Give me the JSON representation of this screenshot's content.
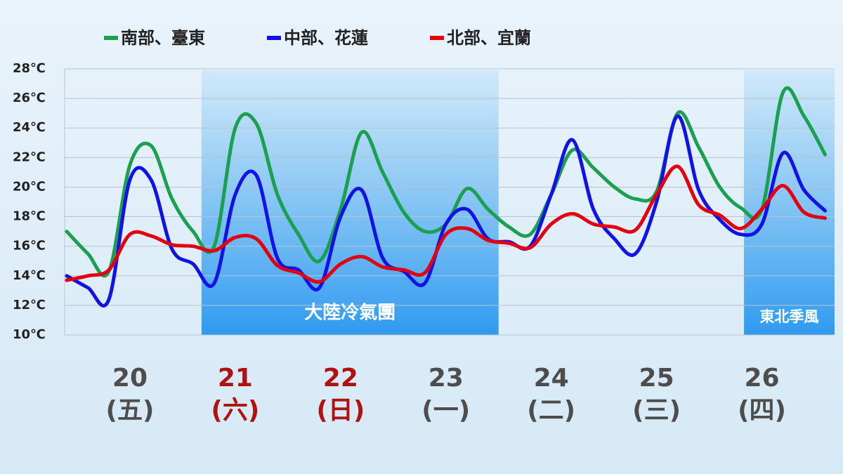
{
  "chart_data": {
    "type": "line",
    "x": [
      19.4,
      19.6,
      19.8,
      20.0,
      20.2,
      20.4,
      20.6,
      20.8,
      21.0,
      21.2,
      21.4,
      21.6,
      21.8,
      22.0,
      22.2,
      22.4,
      22.6,
      22.8,
      23.0,
      23.2,
      23.4,
      23.6,
      23.8,
      24.0,
      24.2,
      24.4,
      24.6,
      24.8,
      25.0,
      25.2,
      25.4,
      25.6,
      25.8,
      26.0,
      26.2,
      26.4,
      26.6
    ],
    "series": [
      {
        "name": "南部、臺東",
        "color": "#1aa04f",
        "values": [
          17.0,
          15.5,
          14.3,
          21.5,
          22.8,
          19.2,
          17.0,
          16.0,
          24.0,
          24.3,
          19.5,
          16.8,
          15.0,
          18.5,
          23.7,
          21.0,
          18.3,
          17.0,
          17.5,
          19.9,
          18.5,
          17.3,
          16.8,
          19.5,
          22.5,
          21.3,
          20.0,
          19.2,
          19.7,
          25.0,
          22.7,
          20.0,
          18.6,
          18.5,
          26.4,
          24.8,
          22.2
        ]
      },
      {
        "name": "中部、花蓮",
        "color": "#1212e6",
        "values": [
          14.0,
          13.2,
          12.4,
          20.5,
          20.5,
          15.8,
          14.8,
          13.5,
          19.5,
          20.8,
          15.2,
          14.4,
          13.2,
          18.0,
          19.8,
          15.2,
          14.3,
          13.5,
          17.5,
          18.5,
          16.5,
          16.3,
          16.0,
          19.5,
          23.2,
          18.5,
          16.5,
          15.5,
          19.0,
          24.8,
          19.8,
          17.8,
          16.8,
          17.5,
          22.3,
          19.8,
          18.4
        ]
      },
      {
        "name": "北部、宜蘭",
        "color": "#e3000f",
        "values": [
          13.7,
          14.0,
          14.4,
          16.8,
          16.7,
          16.1,
          16.0,
          15.7,
          16.6,
          16.5,
          14.7,
          14.2,
          13.6,
          14.8,
          15.3,
          14.6,
          14.4,
          14.2,
          16.8,
          17.2,
          16.4,
          16.2,
          15.9,
          17.5,
          18.2,
          17.5,
          17.3,
          17.1,
          19.5,
          21.4,
          18.8,
          18.1,
          17.2,
          18.5,
          20.1,
          18.3,
          17.9
        ]
      }
    ],
    "xlim": [
      19.38,
      26.69
    ],
    "xticks": [
      20,
      21,
      22,
      23,
      24,
      25,
      26
    ],
    "weekday_labels": [
      "(五)",
      "(六)",
      "(日)",
      "(一)",
      "(二)",
      "(三)",
      "(四)"
    ],
    "holidays": [
      false,
      true,
      true,
      false,
      false,
      false,
      false
    ],
    "holiday_color": "#b01212",
    "tick_color": "#4d4d4d",
    "ylim": [
      10,
      28
    ],
    "yticks": [
      {
        "value": 10,
        "label": "10℃"
      },
      {
        "value": 12,
        "label": "12℃"
      },
      {
        "value": 14,
        "label": "14℃"
      },
      {
        "value": 16,
        "label": "16℃"
      },
      {
        "value": 18,
        "label": "18℃"
      },
      {
        "value": 20,
        "label": "20℃"
      },
      {
        "value": 22,
        "label": "22℃"
      },
      {
        "value": 24,
        "label": "24℃"
      },
      {
        "value": 26,
        "label": "26℃"
      },
      {
        "value": 28,
        "label": "28℃"
      }
    ],
    "grid": true,
    "legend": "top",
    "annotations": [
      {
        "text": "大陸冷氣團",
        "x": [
          20.68,
          23.5
        ]
      },
      {
        "text": "東北季風",
        "x": [
          25.83,
          26.69
        ]
      }
    ]
  }
}
